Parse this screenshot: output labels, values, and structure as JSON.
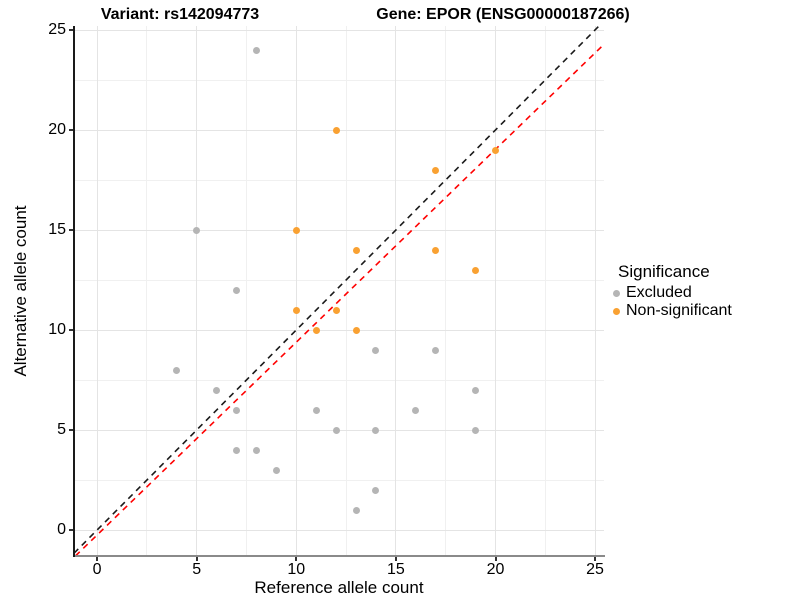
{
  "chart_data": {
    "type": "scatter",
    "title_left": "Variant: rs142094773",
    "title_right": "Gene: EPOR (ENSG00000187266)",
    "xlabel": "Reference allele count",
    "ylabel": "Alternative allele count",
    "xlim": [
      -1.16,
      25.45
    ],
    "ylim": [
      -1.3,
      25.2
    ],
    "x_ticks": [
      0,
      5,
      10,
      15,
      20,
      25
    ],
    "y_ticks": [
      0,
      5,
      10,
      15,
      20,
      25
    ],
    "x_minor_ticks": [
      2.5,
      7.5,
      12.5,
      17.5,
      22.5
    ],
    "y_minor_ticks": [
      2.5,
      7.5,
      12.5,
      17.5,
      22.5
    ],
    "grid": "major+minor",
    "background": "#ffffff",
    "legend": {
      "title": "Significance",
      "position": "right"
    },
    "series": [
      {
        "name": "Excluded",
        "color": "#b5b5b5",
        "points": [
          [
            8,
            24
          ],
          [
            5,
            15
          ],
          [
            7,
            12
          ],
          [
            4,
            8
          ],
          [
            14,
            9
          ],
          [
            17,
            9
          ],
          [
            6,
            7
          ],
          [
            19,
            7
          ],
          [
            7,
            6
          ],
          [
            11,
            6
          ],
          [
            16,
            6
          ],
          [
            12,
            5
          ],
          [
            14,
            5
          ],
          [
            19,
            5
          ],
          [
            7,
            4
          ],
          [
            8,
            4
          ],
          [
            9,
            3
          ],
          [
            14,
            2
          ],
          [
            13,
            1
          ]
        ]
      },
      {
        "name": "Non-significant",
        "color": "#f9a132",
        "points": [
          [
            12,
            20
          ],
          [
            20,
            19
          ],
          [
            17,
            18
          ],
          [
            10,
            15
          ],
          [
            13,
            14
          ],
          [
            17,
            14
          ],
          [
            19,
            13
          ],
          [
            10,
            11
          ],
          [
            12,
            11
          ],
          [
            11,
            10
          ],
          [
            13,
            10
          ]
        ]
      }
    ],
    "lines": [
      {
        "name": "identity",
        "slope": 1,
        "intercept": 0,
        "color": "#1a1a1a",
        "style": "dashed"
      },
      {
        "name": "fit",
        "slope": 0.964,
        "intercept": -0.25,
        "color": "#ff0000",
        "style": "dashed"
      }
    ]
  }
}
